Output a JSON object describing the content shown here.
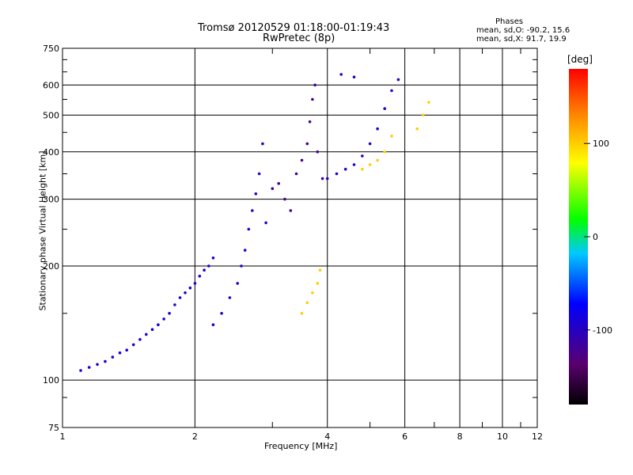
{
  "chart_data": {
    "type": "scatter",
    "title": "Tromsø 20120529 01:18:00-01:19:43",
    "subtitle": "RwPretec (8p)",
    "xlabel": "Frequency [MHz]",
    "ylabel": "Stationary phase Virtual Height [km]",
    "x_scale": "log",
    "y_scale": "log",
    "xlim": [
      1,
      12
    ],
    "ylim": [
      75,
      750
    ],
    "x_ticks": [
      "1",
      "2",
      "4",
      "6",
      "8",
      "10",
      "12"
    ],
    "y_ticks": [
      "75",
      "100",
      "200",
      "300",
      "400",
      "500",
      "600",
      "750"
    ],
    "grid": true,
    "phases_legend": {
      "heading": "Phases",
      "o_line": "mean, sd,O:  -90.2,  15.6",
      "x_line": "mean, sd,X:   91.7,  19.9"
    },
    "colorbar": {
      "label": "[deg]",
      "ticks": [
        "100",
        "0",
        "-100"
      ],
      "range": [
        -180,
        180
      ]
    },
    "clusters": [
      {
        "name": "",
        "color_phase": -90,
        "points": [
          [
            1.1,
            106
          ],
          [
            1.15,
            108
          ],
          [
            1.2,
            110
          ],
          [
            1.25,
            112
          ],
          [
            1.3,
            115
          ],
          [
            1.35,
            118
          ],
          [
            1.4,
            120
          ],
          [
            1.45,
            124
          ],
          [
            1.5,
            128
          ],
          [
            1.55,
            132
          ],
          [
            1.6,
            136
          ],
          [
            1.65,
            140
          ],
          [
            1.7,
            145
          ],
          [
            1.75,
            150
          ],
          [
            1.8,
            158
          ],
          [
            1.85,
            165
          ],
          [
            1.9,
            170
          ],
          [
            1.95,
            175
          ],
          [
            2.0,
            180
          ],
          [
            2.05,
            188
          ],
          [
            2.1,
            195
          ],
          [
            2.15,
            200
          ],
          [
            2.2,
            210
          ]
        ]
      },
      {
        "name": "",
        "color_phase": -95,
        "points": [
          [
            2.2,
            140
          ],
          [
            2.3,
            150
          ],
          [
            2.4,
            165
          ],
          [
            2.5,
            180
          ],
          [
            2.55,
            200
          ],
          [
            2.6,
            220
          ],
          [
            2.65,
            250
          ],
          [
            2.7,
            280
          ],
          [
            2.75,
            310
          ],
          [
            2.8,
            350
          ],
          [
            2.85,
            420
          ],
          [
            2.9,
            260
          ]
        ]
      },
      {
        "name": "",
        "color_phase": -120,
        "points": [
          [
            3.0,
            320
          ],
          [
            3.1,
            330
          ],
          [
            3.2,
            300
          ],
          [
            3.3,
            280
          ],
          [
            3.4,
            350
          ],
          [
            3.5,
            380
          ],
          [
            3.6,
            420
          ],
          [
            3.65,
            480
          ],
          [
            3.7,
            550
          ],
          [
            3.75,
            600
          ],
          [
            3.8,
            400
          ],
          [
            3.9,
            340
          ]
        ]
      },
      {
        "name": "",
        "color_phase": -100,
        "points": [
          [
            4.0,
            340
          ],
          [
            4.2,
            350
          ],
          [
            4.4,
            360
          ],
          [
            4.6,
            370
          ],
          [
            4.8,
            390
          ],
          [
            5.0,
            420
          ],
          [
            5.2,
            460
          ],
          [
            5.4,
            520
          ],
          [
            5.6,
            580
          ],
          [
            5.8,
            620
          ],
          [
            4.3,
            640
          ],
          [
            4.6,
            630
          ]
        ]
      },
      {
        "name": "",
        "color_phase": 100,
        "points": [
          [
            3.5,
            150
          ],
          [
            3.6,
            160
          ],
          [
            3.7,
            170
          ],
          [
            3.8,
            180
          ],
          [
            3.85,
            195
          ],
          [
            4.8,
            360
          ],
          [
            5.0,
            370
          ],
          [
            5.2,
            380
          ],
          [
            5.4,
            400
          ],
          [
            5.6,
            440
          ],
          [
            6.4,
            460
          ],
          [
            6.6,
            500
          ],
          [
            6.8,
            540
          ]
        ]
      }
    ]
  }
}
